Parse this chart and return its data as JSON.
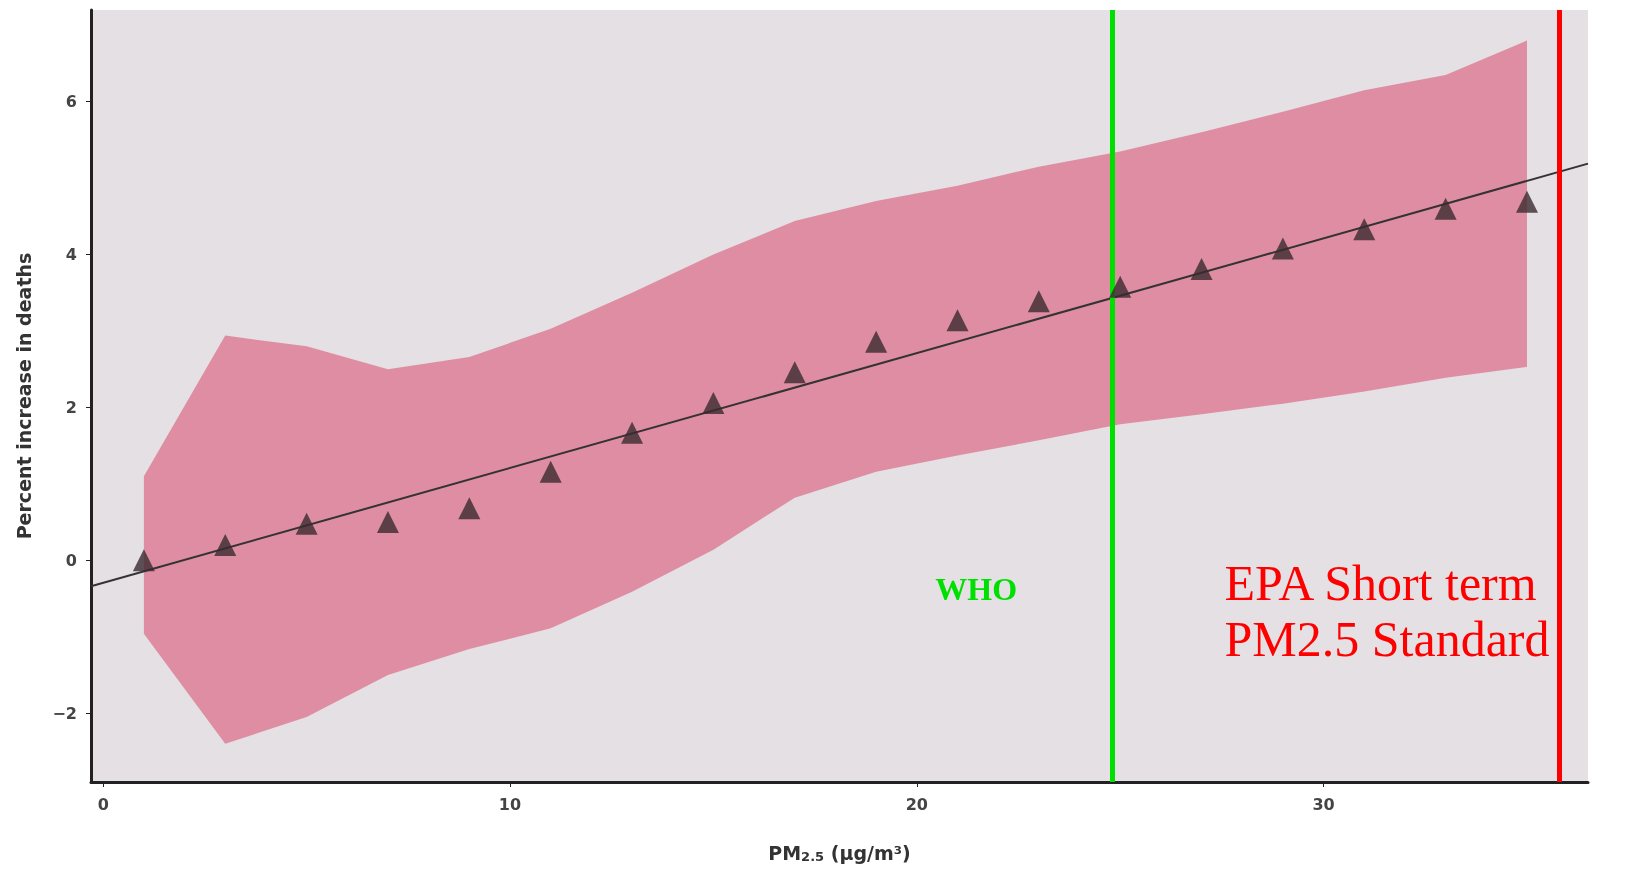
{
  "chart_data": {
    "type": "scatter",
    "xlabel": "PM$_{2.5}$ (μg/m³)",
    "ylabel": "Percent increase in deaths",
    "xlim": [
      -0.3,
      36.5
    ],
    "ylim": [
      -2.9,
      7.2
    ],
    "xticks": [
      0,
      10,
      20,
      30
    ],
    "yticks": [
      -2,
      0,
      2,
      4,
      6
    ],
    "grid": false,
    "marker": "triangle",
    "series": [
      {
        "color": "#3a2a30",
        "x": [
          1,
          3,
          5,
          7,
          9,
          11,
          13,
          15,
          17,
          19,
          21,
          23,
          25,
          27,
          29,
          31,
          33,
          35
        ],
        "values": [
          0,
          0.2,
          0.48,
          0.5,
          0.68,
          1.16,
          1.67,
          2.06,
          2.46,
          2.86,
          3.14,
          3.39,
          3.58,
          3.81,
          4.08,
          4.33,
          4.6,
          4.69
        ],
        "lower": [
          -0.96,
          -2.4,
          -2.05,
          -1.5,
          -1.16,
          -0.89,
          -0.41,
          0.14,
          0.82,
          1.16,
          1.37,
          1.57,
          1.78,
          1.91,
          2.05,
          2.21,
          2.39,
          2.53
        ],
        "upper": [
          1.1,
          2.94,
          2.8,
          2.5,
          2.66,
          3.03,
          3.5,
          4.0,
          4.44,
          4.7,
          4.9,
          5.15,
          5.35,
          5.6,
          5.87,
          6.15,
          6.35,
          6.8
        ]
      },
      {
        "type": "line",
        "color": "#333333",
        "x": [
          -0.3,
          36.5
        ],
        "values": [
          -0.34,
          5.19
        ],
        "marker": "none"
      }
    ],
    "ref_lines": [
      {
        "axis": "x",
        "value": 24.8,
        "label": "WHO",
        "color": "#00e000"
      },
      {
        "axis": "x",
        "value": 35.8,
        "label": "EPA Short term\nPM2.5 Standard",
        "color": "#ff0000"
      }
    ]
  }
}
